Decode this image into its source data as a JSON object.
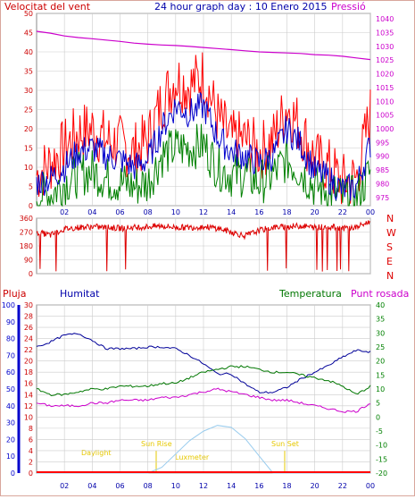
{
  "header": {
    "left_title": "Velocitat del vent",
    "center_title": "24 hour graph day : 10 Enero 2015",
    "right_title": "Pressió"
  },
  "x_axis": {
    "hour_ticks": [
      "02",
      "04",
      "06",
      "08",
      "10",
      "12",
      "14",
      "16",
      "18",
      "20",
      "22",
      "00"
    ]
  },
  "bottom_panel": {
    "labels": {
      "pluja": "Pluja",
      "humitat": "Humitat",
      "temperatura": "Temperatura",
      "punt_rosada": "Punt rosada"
    },
    "annotations": {
      "daylight": "Daylight",
      "sun_rise": "Sun Rise",
      "sun_set": "Sun Set",
      "luxmeter": "Luxmeter"
    }
  },
  "colors": {
    "wind_gust": "#ff0000",
    "wind_avg": "#0000cc",
    "wind_low": "#008000",
    "pressure": "#cc00cc",
    "direction": "#dd0000",
    "humidity": "#000099",
    "temperature": "#007700",
    "dew_point": "#cc00cc",
    "rain": "#ff0000",
    "axis_left": "#cc0000",
    "axis_right": "#cc00cc",
    "axis_blue": "#0000cc",
    "axis_green": "#008000",
    "grid": "#cccccc",
    "annotation": "#e6c800",
    "luxmeter": "#99ccee"
  },
  "chart_data": [
    {
      "type": "line",
      "title": "24 hour graph day : 10 Enero 2015",
      "xlabel": "",
      "ylabel": "Velocitat del vent",
      "y2label": "Pressió",
      "x_hours": [
        0,
        1,
        2,
        3,
        4,
        5,
        6,
        7,
        8,
        9,
        10,
        11,
        12,
        13,
        14,
        15,
        16,
        17,
        18,
        19,
        20,
        21,
        22,
        23,
        24
      ],
      "y_ticks": [
        0,
        5,
        10,
        15,
        20,
        25,
        30,
        35,
        40,
        45,
        50
      ],
      "ylim": [
        0,
        50
      ],
      "y2_ticks": [
        975,
        980,
        985,
        990,
        995,
        1000,
        1005,
        1010,
        1015,
        1020,
        1025,
        1030,
        1035,
        1040
      ],
      "y2lim": [
        972,
        1042
      ],
      "series": [
        {
          "name": "wind_gust",
          "values": [
            8,
            11,
            15,
            19,
            20,
            17,
            16,
            14,
            17,
            27,
            33,
            31,
            34,
            23,
            17,
            17,
            14,
            17,
            26,
            20,
            12,
            10,
            6,
            7,
            24
          ]
        },
        {
          "name": "wind_avg",
          "values": [
            6,
            7,
            10,
            14,
            15,
            13,
            12,
            10,
            12,
            20,
            26,
            24,
            26,
            18,
            14,
            13,
            11,
            13,
            20,
            16,
            9,
            7,
            4,
            5,
            16
          ]
        },
        {
          "name": "wind_low",
          "values": [
            3,
            3,
            6,
            8,
            9,
            7,
            6,
            5,
            6,
            13,
            15,
            15,
            16,
            10,
            8,
            8,
            6,
            8,
            12,
            9,
            5,
            4,
            2,
            2,
            9
          ]
        },
        {
          "name": "pressure",
          "values": [
            1035.5,
            1034.8,
            1033.8,
            1033.2,
            1032.8,
            1032.3,
            1031.8,
            1031.2,
            1030.8,
            1030.5,
            1030.3,
            1030.0,
            1029.6,
            1029.2,
            1028.8,
            1028.4,
            1028.0,
            1027.8,
            1027.6,
            1027.4,
            1027.0,
            1026.8,
            1026.4,
            1025.8,
            1025.2
          ]
        }
      ]
    },
    {
      "type": "line",
      "ylabel": "",
      "y_ticks": [
        0,
        90,
        180,
        270,
        360
      ],
      "ylim": [
        0,
        360
      ],
      "y2_ticks": [
        "N",
        "W",
        "S",
        "E",
        "N"
      ],
      "x_hours": [
        0,
        1,
        2,
        3,
        4,
        5,
        6,
        7,
        8,
        9,
        10,
        11,
        12,
        13,
        14,
        15,
        16,
        17,
        18,
        19,
        20,
        21,
        22,
        23,
        24
      ],
      "series": [
        {
          "name": "direction",
          "values": [
            270,
            250,
            290,
            300,
            305,
            300,
            295,
            300,
            305,
            310,
            300,
            300,
            305,
            295,
            270,
            245,
            280,
            300,
            305,
            310,
            300,
            305,
            295,
            300,
            340
          ]
        }
      ]
    },
    {
      "type": "line",
      "x_hours": [
        0,
        1,
        2,
        3,
        4,
        5,
        6,
        7,
        8,
        9,
        10,
        11,
        12,
        13,
        14,
        15,
        16,
        17,
        18,
        19,
        20,
        21,
        22,
        23,
        24
      ],
      "pluja_ticks": [
        0,
        2,
        4,
        6,
        8,
        10,
        12,
        14,
        16,
        18,
        20,
        22,
        24,
        26,
        28,
        30
      ],
      "pluja_lim": [
        0,
        30
      ],
      "humitat_ticks": [
        0,
        10,
        20,
        30,
        40,
        50,
        60,
        70,
        80,
        90,
        100
      ],
      "humitat_lim": [
        0,
        100
      ],
      "temp_ticks": [
        -20,
        -15,
        -10,
        -5,
        0,
        5,
        10,
        15,
        20,
        25,
        30,
        35,
        40
      ],
      "temp_lim": [
        -20,
        40
      ],
      "series": [
        {
          "name": "humidity",
          "values": [
            75,
            78,
            82,
            83,
            79,
            74,
            74,
            74,
            75,
            75,
            74,
            70,
            65,
            59,
            59,
            53,
            48,
            48,
            51,
            56,
            60,
            64,
            69,
            73,
            72
          ]
        },
        {
          "name": "temperature",
          "values": [
            10,
            8,
            8,
            9,
            10,
            10,
            11,
            11,
            11,
            12,
            12,
            14,
            16,
            17,
            18,
            18,
            17,
            16,
            16,
            15,
            14,
            13,
            11,
            8,
            11
          ]
        },
        {
          "name": "dew_point",
          "values": [
            5,
            4,
            4,
            4,
            5,
            5,
            6,
            6,
            6,
            7,
            7,
            8,
            9,
            10,
            9,
            8,
            7,
            6,
            6,
            5,
            4,
            3,
            2,
            2,
            5
          ]
        },
        {
          "name": "rain",
          "values": [
            0,
            0,
            0,
            0,
            0,
            0,
            0,
            0,
            0,
            0,
            0,
            0,
            0,
            0,
            0,
            0,
            0,
            0,
            0,
            0,
            0,
            0,
            0,
            0,
            0
          ]
        },
        {
          "name": "luxmeter",
          "values": [
            0,
            0,
            0,
            0,
            0,
            0,
            0,
            0,
            0,
            0.3,
            1.0,
            1.7,
            2.2,
            2.5,
            2.4,
            1.8,
            0.9,
            0,
            0,
            0,
            0,
            0,
            0,
            0,
            0
          ]
        }
      ]
    }
  ]
}
